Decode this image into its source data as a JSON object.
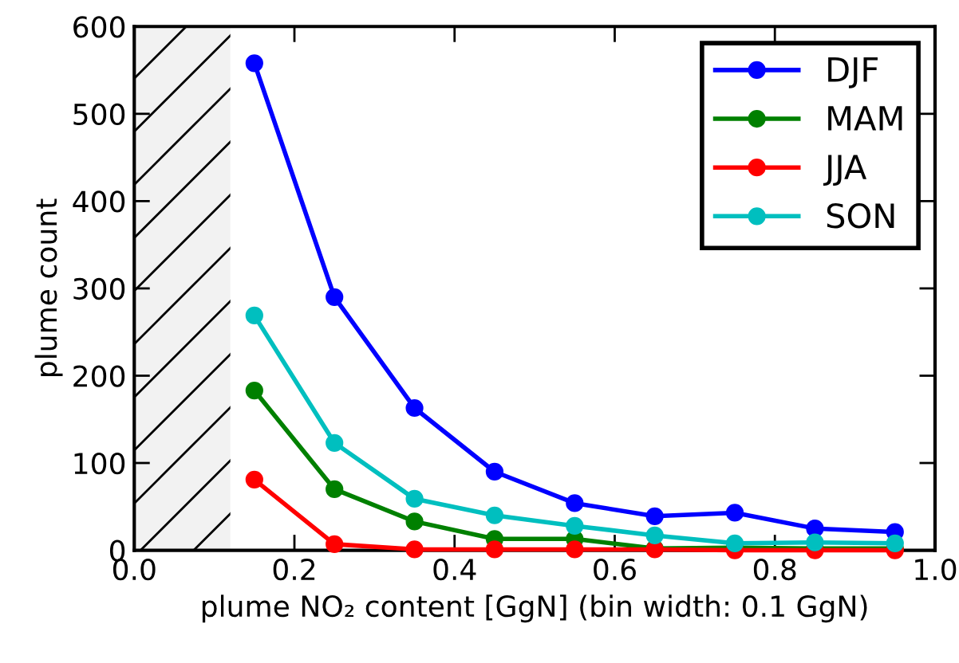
{
  "chart_data": {
    "type": "line",
    "xlabel": "plume NO₂ content [GgN] (bin width: 0.1 GgN)",
    "ylabel": "plume count",
    "x": [
      0.15,
      0.25,
      0.35,
      0.45,
      0.55,
      0.65,
      0.75,
      0.85,
      0.95
    ],
    "series": [
      {
        "name": "DJF",
        "color": "#0000ff",
        "values": [
          558,
          290,
          163,
          90,
          54,
          39,
          43,
          25,
          21
        ]
      },
      {
        "name": "MAM",
        "color": "#008000",
        "values": [
          183,
          70,
          33,
          13,
          13,
          2,
          3,
          2,
          2
        ]
      },
      {
        "name": "JJA",
        "color": "#ff0000",
        "values": [
          81,
          7,
          1,
          1,
          1,
          1,
          0,
          0,
          0
        ]
      },
      {
        "name": "SON",
        "color": "#00bfbf",
        "values": [
          269,
          123,
          59,
          40,
          28,
          17,
          8,
          9,
          8
        ]
      }
    ],
    "xlim": [
      0.0,
      1.0
    ],
    "xticks": [
      {
        "value": 0.0,
        "label": "0.0"
      },
      0.2,
      0.4,
      0.6,
      0.8,
      {
        "value": 1.0,
        "label": "1.0"
      }
    ],
    "ylim": [
      0,
      600
    ],
    "yticks": [
      0,
      100,
      200,
      300,
      400,
      500,
      600
    ],
    "bands": [
      {
        "axis": "x",
        "from": 0.0,
        "to": 0.12,
        "color": "#f2f2f2"
      }
    ],
    "grid": false,
    "legend": "top right",
    "marker": "circle",
    "line_style": "solid"
  }
}
